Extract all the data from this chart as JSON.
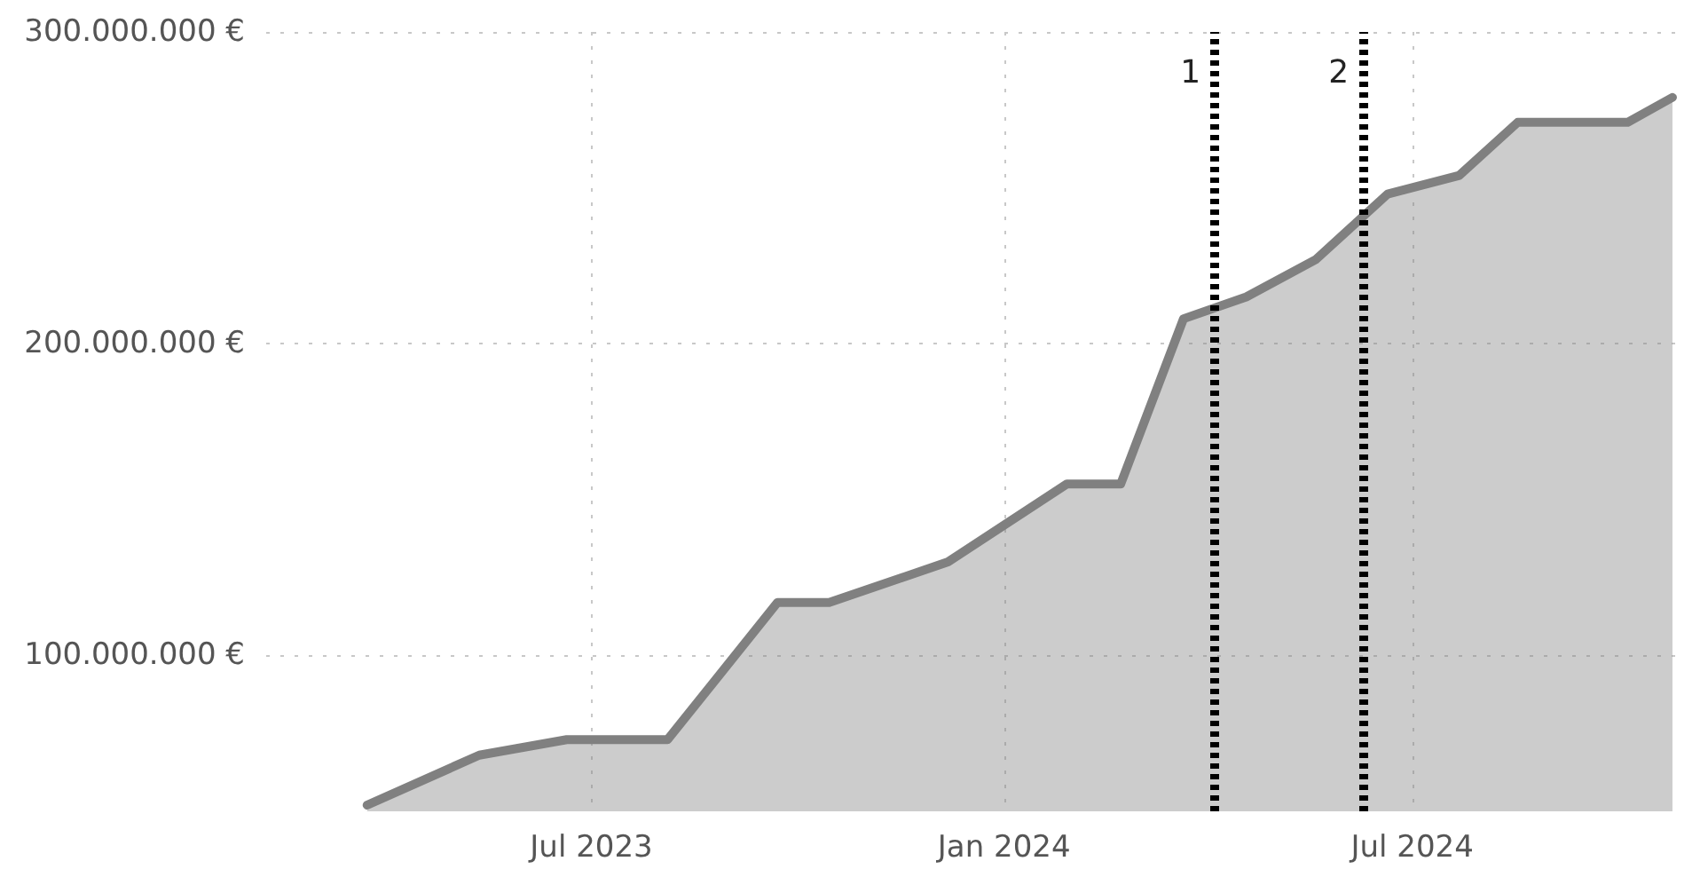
{
  "chart_data": {
    "type": "area",
    "x": [
      "2023-03-23",
      "2023-05-12",
      "2023-06-20",
      "2023-08-04",
      "2023-09-22",
      "2023-10-15",
      "2023-12-07",
      "2024-01-29",
      "2024-02-22",
      "2024-03-21",
      "2024-04-18",
      "2024-05-19",
      "2024-06-20",
      "2024-07-22",
      "2024-08-17",
      "2024-10-05",
      "2024-10-25"
    ],
    "series": [
      {
        "color": "#808080",
        "values": [
          52000000,
          68000000,
          73000000,
          73000000,
          117000000,
          117000000,
          130000000,
          155000000,
          155000000,
          208000000,
          215000000,
          227000000,
          248000000,
          254000000,
          271000000,
          271000000,
          279000000
        ]
      }
    ],
    "xlim": [
      "2023-02-06",
      "2024-10-27"
    ],
    "xticks": [
      {
        "value": "2023-07-01",
        "label": "Jul 2023"
      },
      {
        "value": "2024-01-01",
        "label": "Jan 2024"
      },
      {
        "value": "2024-07-01",
        "label": "Jul 2024"
      }
    ],
    "ylim": [
      50000000,
      300000000
    ],
    "yticks": [
      {
        "value": 100000000,
        "label": "100.000.000 €"
      },
      {
        "value": 200000000,
        "label": "200.000.000 €"
      },
      {
        "value": 300000000,
        "label": "300.000.000 €"
      }
    ],
    "ref_lines": [
      {
        "axis": "x",
        "value": "2024-04-04",
        "label": "1",
        "color": "#000000",
        "line_style": "dotted"
      },
      {
        "axis": "x",
        "value": "2024-06-09",
        "label": "2",
        "color": "#000000",
        "line_style": "dotted"
      }
    ],
    "grid": true,
    "marker": "none",
    "line_style": "solid"
  }
}
